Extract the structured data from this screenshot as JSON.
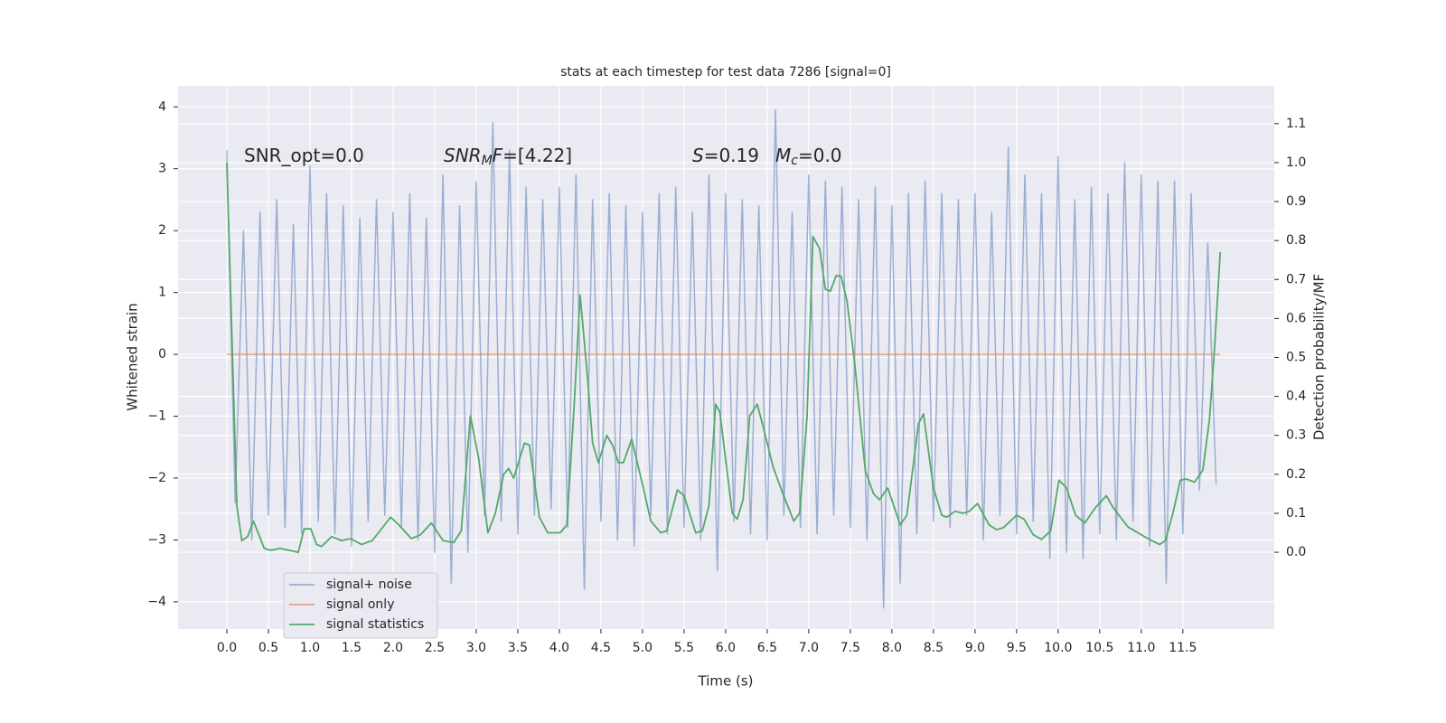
{
  "chart_data": {
    "type": "line",
    "title": "stats at each timestep for test data 7286 [signal=0]",
    "xlabel": "Time (s)",
    "ylabel": "Whitened strain",
    "y2label": "Detection probability/MF",
    "grid": true,
    "legend": "lower left",
    "xlim": [
      -0.587,
      12.6
    ],
    "ylim": [
      -4.44,
      4.34
    ],
    "y2lim": [
      -0.197,
      1.197
    ],
    "xticks": [
      {
        "value": 0,
        "label": "0.0"
      },
      0.5,
      {
        "value": 1,
        "label": "1.0"
      },
      1.5,
      {
        "value": 2,
        "label": "2.0"
      },
      2.5,
      {
        "value": 3,
        "label": "3.0"
      },
      3.5,
      {
        "value": 4,
        "label": "4.0"
      },
      4.5,
      {
        "value": 5,
        "label": "5.0"
      },
      5.5,
      {
        "value": 6,
        "label": "6.0"
      },
      6.5,
      {
        "value": 7,
        "label": "7.0"
      },
      7.5,
      {
        "value": 8,
        "label": "8.0"
      },
      8.5,
      {
        "value": 9,
        "label": "9.0"
      },
      9.5,
      {
        "value": 10,
        "label": "10.0"
      },
      10.5,
      {
        "value": 11,
        "label": "11.0"
      },
      11.5
    ],
    "yticks": [
      {
        "value": -4,
        "label": "−4"
      },
      {
        "value": -3,
        "label": "−3"
      },
      {
        "value": -2,
        "label": "−2"
      },
      {
        "value": -1,
        "label": "−1"
      },
      0,
      1,
      2,
      3,
      4
    ],
    "y2ticks": [
      {
        "value": 0,
        "label": "0.0"
      },
      0.1,
      0.2,
      0.3,
      0.4,
      0.5,
      0.6,
      0.7,
      0.8,
      0.9,
      {
        "value": 1,
        "label": "1.0"
      },
      1.1
    ],
    "annotations": [
      [
        {
          "text": "SNR_opt=0.0",
          "italic": false,
          "sub": false
        }
      ],
      [
        {
          "text": "SNR",
          "italic": true,
          "sub": false
        },
        {
          "text": "M",
          "italic": true,
          "sub": true
        },
        {
          "text": "F",
          "italic": true,
          "sub": false
        },
        {
          "text": "=[4.22]",
          "italic": false,
          "sub": false
        }
      ],
      [
        {
          "text": "S",
          "italic": true,
          "sub": false
        },
        {
          "text": "=0.19",
          "italic": false,
          "sub": false
        }
      ],
      [
        {
          "text": "M",
          "italic": true,
          "sub": false
        },
        {
          "text": "c",
          "italic": true,
          "sub": true
        },
        {
          "text": "=0.0",
          "italic": false,
          "sub": false
        }
      ]
    ],
    "series": [
      {
        "name": "signal+ noise",
        "color": "#4c72b0",
        "opacity": 0.5,
        "x": [
          0.0,
          0.1,
          0.2,
          0.3,
          0.4,
          0.5,
          0.6,
          0.7,
          0.8,
          0.9,
          1.0,
          1.1,
          1.2,
          1.3,
          1.4,
          1.5,
          1.6,
          1.7,
          1.8,
          1.9,
          2.0,
          2.1,
          2.2,
          2.3,
          2.4,
          2.5,
          2.6,
          2.7,
          2.8,
          2.9,
          3.0,
          3.1,
          3.2,
          3.3,
          3.4,
          3.5,
          3.6,
          3.7,
          3.8,
          3.9,
          4.0,
          4.1,
          4.2,
          4.3,
          4.4,
          4.5,
          4.6,
          4.7,
          4.8,
          4.9,
          5.0,
          5.1,
          5.2,
          5.3,
          5.4,
          5.5,
          5.6,
          5.7,
          5.8,
          5.9,
          6.0,
          6.1,
          6.2,
          6.3,
          6.4,
          6.5,
          6.6,
          6.7,
          6.8,
          6.9,
          7.0,
          7.1,
          7.2,
          7.3,
          7.4,
          7.5,
          7.6,
          7.7,
          7.8,
          7.9,
          8.0,
          8.1,
          8.2,
          8.3,
          8.4,
          8.5,
          8.6,
          8.7,
          8.8,
          8.9,
          9.0,
          9.1,
          9.2,
          9.3,
          9.4,
          9.5,
          9.6,
          9.7,
          9.8,
          9.9,
          10.0,
          10.1,
          10.2,
          10.3,
          10.4,
          10.5,
          10.6,
          10.7,
          10.8,
          10.9,
          11.0,
          11.1,
          11.2,
          11.3,
          11.4,
          11.5,
          11.6,
          11.7,
          11.8,
          11.9
        ],
        "values": [
          3.3,
          -2.4,
          2.0,
          -3.0,
          2.3,
          -2.6,
          2.5,
          -2.8,
          2.1,
          -2.9,
          3.05,
          -2.7,
          2.6,
          -2.9,
          2.4,
          -3.1,
          2.2,
          -2.7,
          2.5,
          -2.6,
          2.3,
          -2.8,
          2.6,
          -3.0,
          2.2,
          -3.2,
          2.9,
          -3.7,
          2.4,
          -3.2,
          2.8,
          -2.6,
          3.75,
          -2.7,
          3.3,
          -2.9,
          2.7,
          -2.6,
          2.5,
          -2.5,
          2.7,
          -2.8,
          2.9,
          -3.8,
          2.5,
          -2.7,
          2.6,
          -3.0,
          2.4,
          -3.1,
          2.3,
          -2.6,
          2.6,
          -2.9,
          2.7,
          -2.8,
          2.3,
          -3.0,
          2.9,
          -3.5,
          2.6,
          -2.7,
          2.5,
          -2.9,
          2.4,
          -3.0,
          3.95,
          -2.6,
          2.3,
          -2.8,
          2.9,
          -2.9,
          2.8,
          -2.6,
          2.7,
          -2.8,
          2.5,
          -3.0,
          2.7,
          -4.1,
          2.4,
          -3.7,
          2.6,
          -2.9,
          2.8,
          -2.7,
          2.6,
          -2.8,
          2.5,
          -2.6,
          2.6,
          -3.0,
          2.3,
          -2.6,
          3.35,
          -2.9,
          2.9,
          -2.7,
          2.6,
          -3.3,
          3.2,
          -3.2,
          2.5,
          -3.3,
          2.7,
          -2.9,
          2.6,
          -3.0,
          3.1,
          -2.7,
          2.9,
          -3.1,
          2.8,
          -3.7,
          2.8,
          -2.9,
          2.6,
          -2.2,
          1.8,
          -2.1
        ]
      },
      {
        "name": "signal only",
        "color": "#dd8452",
        "opacity": 0.7,
        "x": [
          0.0,
          11.95
        ],
        "values": [
          0,
          0
        ]
      },
      {
        "name": "signal statistics",
        "color": "#55a868",
        "opacity": 1,
        "axis": "y2",
        "x": [
          0.0,
          0.12,
          0.18,
          0.25,
          0.32,
          0.45,
          0.53,
          0.64,
          0.86,
          0.93,
          1.01,
          1.08,
          1.14,
          1.26,
          1.38,
          1.49,
          1.62,
          1.75,
          1.97,
          2.07,
          2.22,
          2.33,
          2.46,
          2.6,
          2.73,
          2.82,
          2.93,
          3.03,
          3.14,
          3.23,
          3.33,
          3.39,
          3.45,
          3.58,
          3.64,
          3.76,
          3.86,
          4.01,
          4.09,
          4.18,
          4.25,
          4.34,
          4.4,
          4.47,
          4.57,
          4.64,
          4.71,
          4.77,
          4.87,
          5.01,
          5.1,
          5.22,
          5.29,
          5.42,
          5.5,
          5.64,
          5.72,
          5.8,
          5.88,
          5.93,
          6.08,
          6.14,
          6.21,
          6.29,
          6.38,
          6.46,
          6.57,
          6.68,
          6.82,
          6.89,
          6.98,
          7.05,
          7.13,
          7.2,
          7.26,
          7.33,
          7.39,
          7.46,
          7.55,
          7.68,
          7.78,
          7.85,
          7.95,
          8.03,
          8.1,
          8.18,
          8.32,
          8.38,
          8.5,
          8.6,
          8.66,
          8.76,
          8.86,
          8.93,
          9.03,
          9.17,
          9.26,
          9.34,
          9.5,
          9.59,
          9.7,
          9.8,
          9.91,
          10.01,
          10.1,
          10.21,
          10.32,
          10.45,
          10.58,
          10.66,
          10.84,
          11.08,
          11.22,
          11.29,
          11.38,
          11.47,
          11.54,
          11.64,
          11.74,
          11.82,
          11.88,
          11.95
        ],
        "values": [
          1.0,
          0.12,
          0.03,
          0.04,
          0.08,
          0.01,
          0.005,
          0.01,
          0.0,
          0.06,
          0.06,
          0.02,
          0.015,
          0.04,
          0.03,
          0.035,
          0.02,
          0.03,
          0.09,
          0.07,
          0.035,
          0.045,
          0.075,
          0.03,
          0.025,
          0.055,
          0.35,
          0.24,
          0.05,
          0.1,
          0.2,
          0.215,
          0.19,
          0.28,
          0.275,
          0.09,
          0.05,
          0.05,
          0.07,
          0.385,
          0.66,
          0.445,
          0.28,
          0.23,
          0.3,
          0.275,
          0.23,
          0.23,
          0.29,
          0.165,
          0.08,
          0.05,
          0.055,
          0.16,
          0.145,
          0.05,
          0.055,
          0.12,
          0.38,
          0.36,
          0.1,
          0.085,
          0.135,
          0.35,
          0.38,
          0.315,
          0.22,
          0.155,
          0.08,
          0.1,
          0.35,
          0.81,
          0.78,
          0.675,
          0.67,
          0.71,
          0.708,
          0.645,
          0.49,
          0.21,
          0.15,
          0.135,
          0.165,
          0.115,
          0.07,
          0.095,
          0.33,
          0.355,
          0.165,
          0.095,
          0.09,
          0.105,
          0.1,
          0.105,
          0.125,
          0.07,
          0.058,
          0.063,
          0.095,
          0.085,
          0.045,
          0.033,
          0.055,
          0.185,
          0.165,
          0.095,
          0.075,
          0.115,
          0.145,
          0.115,
          0.065,
          0.035,
          0.02,
          0.03,
          0.1,
          0.185,
          0.188,
          0.18,
          0.21,
          0.34,
          0.52,
          0.77
        ]
      }
    ]
  }
}
